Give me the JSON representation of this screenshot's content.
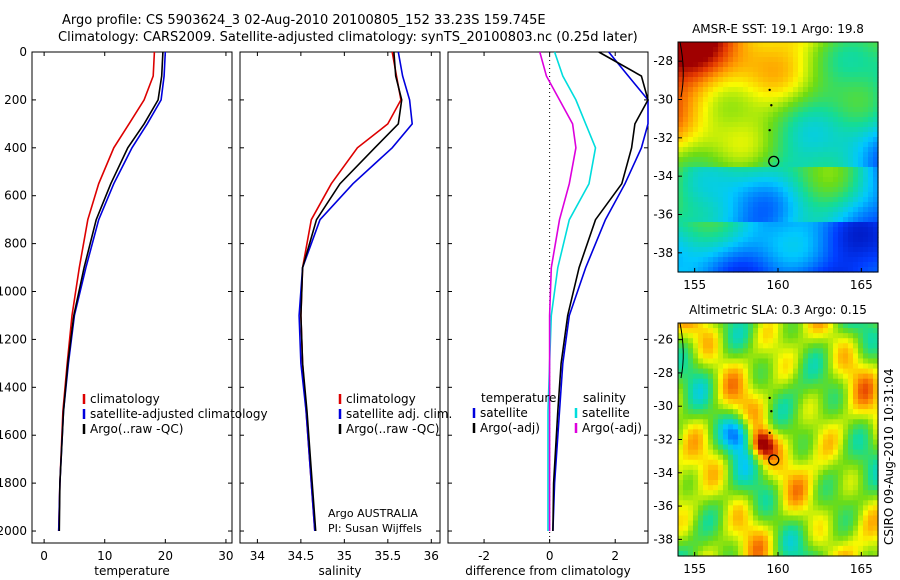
{
  "header": {
    "title_line1": "Argo profile: CS 5903624_3 02-Aug-2010 20100805_152 33.23S 159.745E",
    "title_line2": "Climatology: CARS2009. Satellite-adjusted climatology: synTS_20100803.nc (0.25d later)"
  },
  "chart_data": [
    {
      "type": "line",
      "xlabel": "temperature",
      "xlim": [
        -2,
        31
      ],
      "ylim": [
        2050,
        0
      ],
      "xticks": [
        "0",
        "10",
        "20",
        "30"
      ],
      "yticks": [
        "0",
        "200",
        "400",
        "600",
        "800",
        "1000",
        "1200",
        "1400",
        "1600",
        "1800",
        "2000"
      ],
      "legend": {
        "placement": "lower-right",
        "entries": [
          "climatology",
          "satellite-adjusted climatology",
          "Argo(..raw -QC)"
        ]
      },
      "series": [
        {
          "name": "climatology",
          "color": "#dd0000",
          "x": [
            18.2,
            18.0,
            16.5,
            14.0,
            11.5,
            9.0,
            7.2,
            5.8,
            4.6,
            3.8,
            3.1,
            2.6,
            2.4
          ],
          "y": [
            0,
            100,
            200,
            300,
            400,
            550,
            700,
            900,
            1100,
            1300,
            1500,
            1800,
            2000
          ]
        },
        {
          "name": "satellite-adjusted climatology",
          "color": "#0000dd",
          "x": [
            20.0,
            19.8,
            19.3,
            17.0,
            14.5,
            11.5,
            9.0,
            6.9,
            5.0,
            4.0,
            3.2,
            2.6,
            2.4
          ],
          "y": [
            0,
            100,
            200,
            300,
            400,
            550,
            700,
            900,
            1100,
            1300,
            1500,
            1800,
            2000
          ]
        },
        {
          "name": "Argo(..raw -QC)",
          "color": "#000000",
          "x": [
            19.6,
            19.4,
            18.8,
            16.5,
            13.8,
            11.0,
            8.6,
            6.6,
            4.9,
            3.9,
            3.2,
            2.6,
            2.5
          ],
          "y": [
            0,
            100,
            200,
            300,
            400,
            550,
            700,
            900,
            1100,
            1300,
            1500,
            1800,
            2000
          ]
        }
      ]
    },
    {
      "type": "line",
      "xlabel": "salinity",
      "xlim": [
        33.8,
        36.1
      ],
      "ylim": [
        2050,
        0
      ],
      "xticks": [
        "34",
        "34.5",
        "35",
        "35.5",
        "36"
      ],
      "legend": {
        "placement": "lower-right",
        "entries": [
          "climatology",
          "satellite adj. clim.",
          "Argo(..raw -QC)"
        ]
      },
      "annotation_lines": [
        "Argo AUSTRALIA",
        "PI: Susan Wijffels"
      ],
      "series": [
        {
          "name": "climatology",
          "color": "#dd0000",
          "x": [
            35.55,
            35.6,
            35.65,
            35.5,
            35.15,
            34.85,
            34.62,
            34.52,
            34.5,
            34.52,
            34.56,
            34.62,
            34.66
          ],
          "y": [
            0,
            100,
            200,
            300,
            400,
            550,
            700,
            900,
            1100,
            1300,
            1500,
            1800,
            2000
          ]
        },
        {
          "name": "satellite adj. clim.",
          "color": "#0000dd",
          "x": [
            35.62,
            35.67,
            35.75,
            35.78,
            35.55,
            35.1,
            34.72,
            34.52,
            34.48,
            34.5,
            34.56,
            34.62,
            34.66
          ],
          "y": [
            0,
            100,
            200,
            300,
            400,
            550,
            700,
            900,
            1100,
            1300,
            1500,
            1800,
            2000
          ]
        },
        {
          "name": "Argo(..raw -QC)",
          "color": "#000000",
          "x": [
            35.57,
            35.59,
            35.66,
            35.62,
            35.35,
            34.95,
            34.68,
            34.52,
            34.5,
            34.52,
            34.57,
            34.63,
            34.67
          ],
          "y": [
            0,
            100,
            200,
            300,
            400,
            550,
            700,
            900,
            1100,
            1300,
            1500,
            1800,
            2000
          ]
        }
      ]
    },
    {
      "type": "line",
      "xlabel": "difference from climatology",
      "xlim": [
        -3.1,
        3
      ],
      "ylim": [
        2050,
        0
      ],
      "xticks": [
        "-2",
        "0",
        "2"
      ],
      "legend": {
        "placement": "lower",
        "entries": [
          "temperature",
          "satellite",
          "Argo(-adj)",
          "salinity",
          "satellite",
          "Argo(-adj)"
        ]
      },
      "series": [
        {
          "name": "satellite",
          "group": "temperature",
          "color": "#0000dd",
          "x": [
            1.8,
            2.4,
            3.0,
            3.0,
            2.8,
            2.3,
            1.7,
            1.1,
            0.6,
            0.4,
            0.3,
            0.15,
            0.1
          ],
          "y": [
            0,
            100,
            200,
            300,
            400,
            550,
            700,
            900,
            1100,
            1300,
            1500,
            1800,
            2000
          ]
        },
        {
          "name": "Argo(-adj)",
          "group": "temperature",
          "color": "#000000",
          "x": [
            1.5,
            2.8,
            3.0,
            2.6,
            2.5,
            2.2,
            1.4,
            0.9,
            0.55,
            0.35,
            0.25,
            0.12,
            0.1
          ],
          "y": [
            0,
            100,
            200,
            300,
            400,
            550,
            700,
            900,
            1100,
            1300,
            1500,
            1800,
            2000
          ]
        },
        {
          "name": "satellite",
          "group": "salinity",
          "color": "#00dddd",
          "x": [
            0.15,
            0.4,
            0.8,
            1.1,
            1.4,
            1.2,
            0.6,
            0.25,
            0.05,
            0.0,
            -0.05,
            -0.05,
            -0.05
          ],
          "y": [
            0,
            100,
            200,
            300,
            400,
            550,
            700,
            900,
            1100,
            1300,
            1500,
            1800,
            2000
          ]
        },
        {
          "name": "Argo(-adj)",
          "group": "salinity",
          "color": "#dd00dd",
          "x": [
            -0.3,
            -0.1,
            0.3,
            0.7,
            0.8,
            0.6,
            0.3,
            0.05,
            0.0,
            0.0,
            0.0,
            0.0,
            0.0
          ],
          "y": [
            0,
            100,
            200,
            300,
            400,
            550,
            700,
            900,
            1100,
            1300,
            1500,
            1800,
            2000
          ]
        }
      ]
    },
    {
      "type": "heatmap",
      "title": "AMSR-E SST: 19.1 Argo: 19.8",
      "xlim": [
        154,
        166
      ],
      "ylim": [
        -39,
        -27
      ],
      "xticks": [
        "155",
        "160",
        "165"
      ],
      "yticks": [
        "-28",
        "-30",
        "-32",
        "-34",
        "-36",
        "-38"
      ],
      "marker": {
        "lon": 159.745,
        "lat": -33.23
      }
    },
    {
      "type": "heatmap",
      "title": "Altimetric SLA: 0.3 Argo: 0.15",
      "xlim": [
        154,
        166
      ],
      "ylim": [
        -39,
        -25
      ],
      "xticks": [
        "155",
        "160",
        "165"
      ],
      "yticks": [
        "-26",
        "-28",
        "-30",
        "-32",
        "-34",
        "-36",
        "-38"
      ],
      "marker": {
        "lon": 159.745,
        "lat": -33.23
      }
    }
  ],
  "footer": {
    "stamp": "CSIRO 09-Aug-2010 10:31:04"
  }
}
